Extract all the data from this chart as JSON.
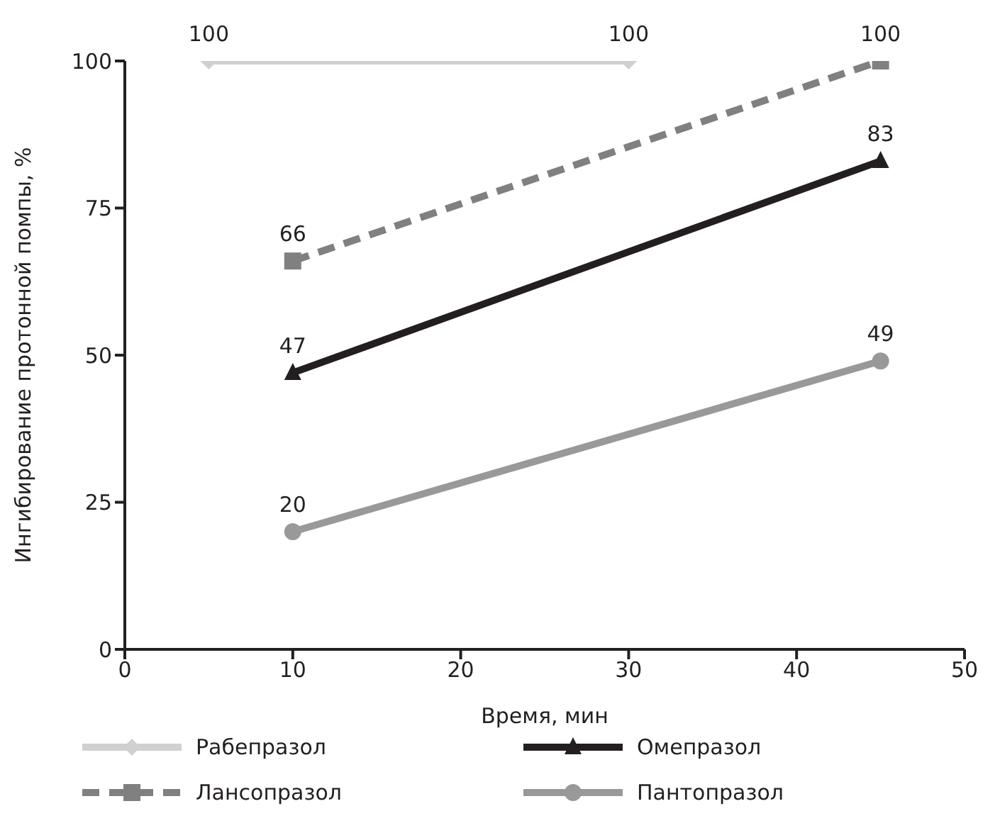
{
  "chart_data": {
    "type": "line",
    "xlabel": "Время, мин",
    "ylabel": "Ингибирование протонной помпы, %",
    "xlim": [
      0,
      50
    ],
    "xticks": [
      0,
      10,
      20,
      30,
      40,
      50
    ],
    "ylim": [
      0,
      100
    ],
    "yticks": [
      0,
      25,
      50,
      75,
      100
    ],
    "legend": "bottom",
    "data_labels": true,
    "line_style": "solid",
    "series": [
      {
        "name": "Рабепразол",
        "color": "#d0d0d0",
        "x": [
          5,
          30
        ],
        "values": [
          100,
          100
        ],
        "marker": "diamond"
      },
      {
        "name": "Омепразол",
        "color": "#231f20",
        "x": [
          10,
          45
        ],
        "values": [
          47,
          83
        ],
        "marker": "triangle"
      },
      {
        "name": "Лансопразол",
        "color": "#808080",
        "x": [
          10,
          45
        ],
        "values": [
          66,
          100
        ],
        "marker": "square",
        "line_style": "dashed"
      },
      {
        "name": "Пантопразол",
        "color": "#999999",
        "x": [
          10,
          45
        ],
        "values": [
          20,
          49
        ],
        "marker": "circle"
      }
    ]
  }
}
